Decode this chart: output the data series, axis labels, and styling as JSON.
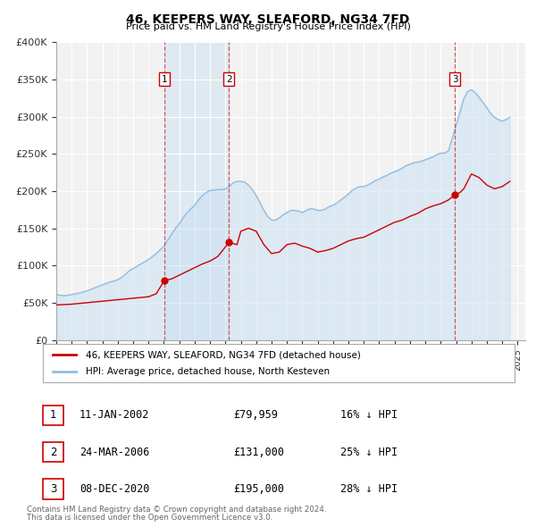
{
  "title": "46, KEEPERS WAY, SLEAFORD, NG34 7FD",
  "subtitle": "Price paid vs. HM Land Registry's House Price Index (HPI)",
  "ylim": [
    0,
    400000
  ],
  "yticks": [
    0,
    50000,
    100000,
    150000,
    200000,
    250000,
    300000,
    350000,
    400000
  ],
  "ytick_labels": [
    "£0",
    "£50K",
    "£100K",
    "£150K",
    "£200K",
    "£250K",
    "£300K",
    "£350K",
    "£400K"
  ],
  "xlim_start": 1995.0,
  "xlim_end": 2025.5,
  "background_color": "#ffffff",
  "plot_bg_color": "#f2f2f2",
  "grid_color": "#ffffff",
  "hpi_color": "#92bde0",
  "price_color": "#cc0000",
  "marker_color": "#cc0000",
  "dashed_line_color": "#cc3333",
  "shade_color": "#c8dff2",
  "legend_label_price": "46, KEEPERS WAY, SLEAFORD, NG34 7FD (detached house)",
  "legend_label_hpi": "HPI: Average price, detached house, North Kesteven",
  "transactions": [
    {
      "num": 1,
      "date_label": "11-JAN-2002",
      "date_year": 2002.03,
      "price": 79959,
      "pct": "16%",
      "direction": "↓"
    },
    {
      "num": 2,
      "date_label": "24-MAR-2006",
      "date_year": 2006.23,
      "price": 131000,
      "pct": "25%",
      "direction": "↓"
    },
    {
      "num": 3,
      "date_label": "08-DEC-2020",
      "date_year": 2020.93,
      "price": 195000,
      "pct": "28%",
      "direction": "↓"
    }
  ],
  "footer_line1": "Contains HM Land Registry data © Crown copyright and database right 2024.",
  "footer_line2": "This data is licensed under the Open Government Licence v3.0.",
  "hpi_data_x": [
    1995.0,
    1995.25,
    1995.5,
    1995.75,
    1996.0,
    1996.25,
    1996.5,
    1996.75,
    1997.0,
    1997.25,
    1997.5,
    1997.75,
    1998.0,
    1998.25,
    1998.5,
    1998.75,
    1999.0,
    1999.25,
    1999.5,
    1999.75,
    2000.0,
    2000.25,
    2000.5,
    2000.75,
    2001.0,
    2001.25,
    2001.5,
    2001.75,
    2002.0,
    2002.25,
    2002.5,
    2002.75,
    2003.0,
    2003.25,
    2003.5,
    2003.75,
    2004.0,
    2004.25,
    2004.5,
    2004.75,
    2005.0,
    2005.25,
    2005.5,
    2005.75,
    2006.0,
    2006.25,
    2006.5,
    2006.75,
    2007.0,
    2007.25,
    2007.5,
    2007.75,
    2008.0,
    2008.25,
    2008.5,
    2008.75,
    2009.0,
    2009.25,
    2009.5,
    2009.75,
    2010.0,
    2010.25,
    2010.5,
    2010.75,
    2011.0,
    2011.25,
    2011.5,
    2011.75,
    2012.0,
    2012.25,
    2012.5,
    2012.75,
    2013.0,
    2013.25,
    2013.5,
    2013.75,
    2014.0,
    2014.25,
    2014.5,
    2014.75,
    2015.0,
    2015.25,
    2015.5,
    2015.75,
    2016.0,
    2016.25,
    2016.5,
    2016.75,
    2017.0,
    2017.25,
    2017.5,
    2017.75,
    2018.0,
    2018.25,
    2018.5,
    2018.75,
    2019.0,
    2019.25,
    2019.5,
    2019.75,
    2020.0,
    2020.25,
    2020.5,
    2020.75,
    2021.0,
    2021.25,
    2021.5,
    2021.75,
    2022.0,
    2022.25,
    2022.5,
    2022.75,
    2023.0,
    2023.25,
    2023.5,
    2023.75,
    2024.0,
    2024.25,
    2024.5
  ],
  "hpi_data_y": [
    61000,
    60000,
    59500,
    60000,
    61000,
    62000,
    63000,
    64500,
    66000,
    68000,
    70000,
    72000,
    74000,
    76000,
    78000,
    79000,
    81000,
    84000,
    88000,
    93000,
    96000,
    99000,
    102000,
    105000,
    108000,
    112000,
    116000,
    121000,
    126000,
    134000,
    142000,
    150000,
    156000,
    164000,
    171000,
    176000,
    181000,
    188000,
    194000,
    198000,
    201000,
    201000,
    202000,
    202000,
    203000,
    206000,
    211000,
    213000,
    213000,
    212000,
    208000,
    202000,
    194000,
    184000,
    174000,
    166000,
    161000,
    161000,
    164000,
    168000,
    171000,
    174000,
    174000,
    173000,
    171000,
    174000,
    176000,
    176000,
    174000,
    174000,
    176000,
    179000,
    181000,
    184000,
    188000,
    192000,
    196000,
    201000,
    204000,
    206000,
    206000,
    208000,
    211000,
    214000,
    216000,
    219000,
    221000,
    224000,
    226000,
    228000,
    231000,
    234000,
    236000,
    238000,
    239000,
    240000,
    242000,
    244000,
    246000,
    249000,
    251000,
    251000,
    254000,
    271000,
    288000,
    306000,
    324000,
    334000,
    336000,
    332000,
    326000,
    319000,
    312000,
    304000,
    299000,
    296000,
    294000,
    296000,
    299000
  ],
  "price_data_x": [
    1995.0,
    1995.5,
    1996.0,
    1996.5,
    1997.0,
    1997.5,
    1998.0,
    1998.5,
    1999.0,
    1999.5,
    2000.0,
    2000.5,
    2001.0,
    2001.5,
    2002.03,
    2002.5,
    2003.0,
    2003.5,
    2004.0,
    2004.5,
    2005.0,
    2005.5,
    2006.23,
    2006.75,
    2007.0,
    2007.5,
    2008.0,
    2008.5,
    2009.0,
    2009.5,
    2010.0,
    2010.5,
    2011.0,
    2011.5,
    2012.0,
    2012.5,
    2013.0,
    2013.5,
    2014.0,
    2014.5,
    2015.0,
    2015.5,
    2016.0,
    2016.5,
    2017.0,
    2017.5,
    2018.0,
    2018.5,
    2019.0,
    2019.5,
    2020.0,
    2020.5,
    2020.93,
    2021.25,
    2021.5,
    2022.0,
    2022.5,
    2023.0,
    2023.5,
    2024.0,
    2024.5
  ],
  "price_data_y": [
    47000,
    47500,
    48000,
    49000,
    50000,
    51000,
    52000,
    53000,
    54000,
    55000,
    56000,
    57000,
    58000,
    62000,
    79959,
    82000,
    87000,
    92000,
    97000,
    102000,
    106000,
    112000,
    131000,
    128000,
    146000,
    150000,
    146000,
    128000,
    116000,
    118000,
    128000,
    130000,
    126000,
    123000,
    118000,
    120000,
    123000,
    128000,
    133000,
    136000,
    138000,
    143000,
    148000,
    153000,
    158000,
    161000,
    166000,
    170000,
    176000,
    180000,
    183000,
    188000,
    195000,
    198000,
    203000,
    223000,
    218000,
    208000,
    203000,
    206000,
    213000
  ]
}
